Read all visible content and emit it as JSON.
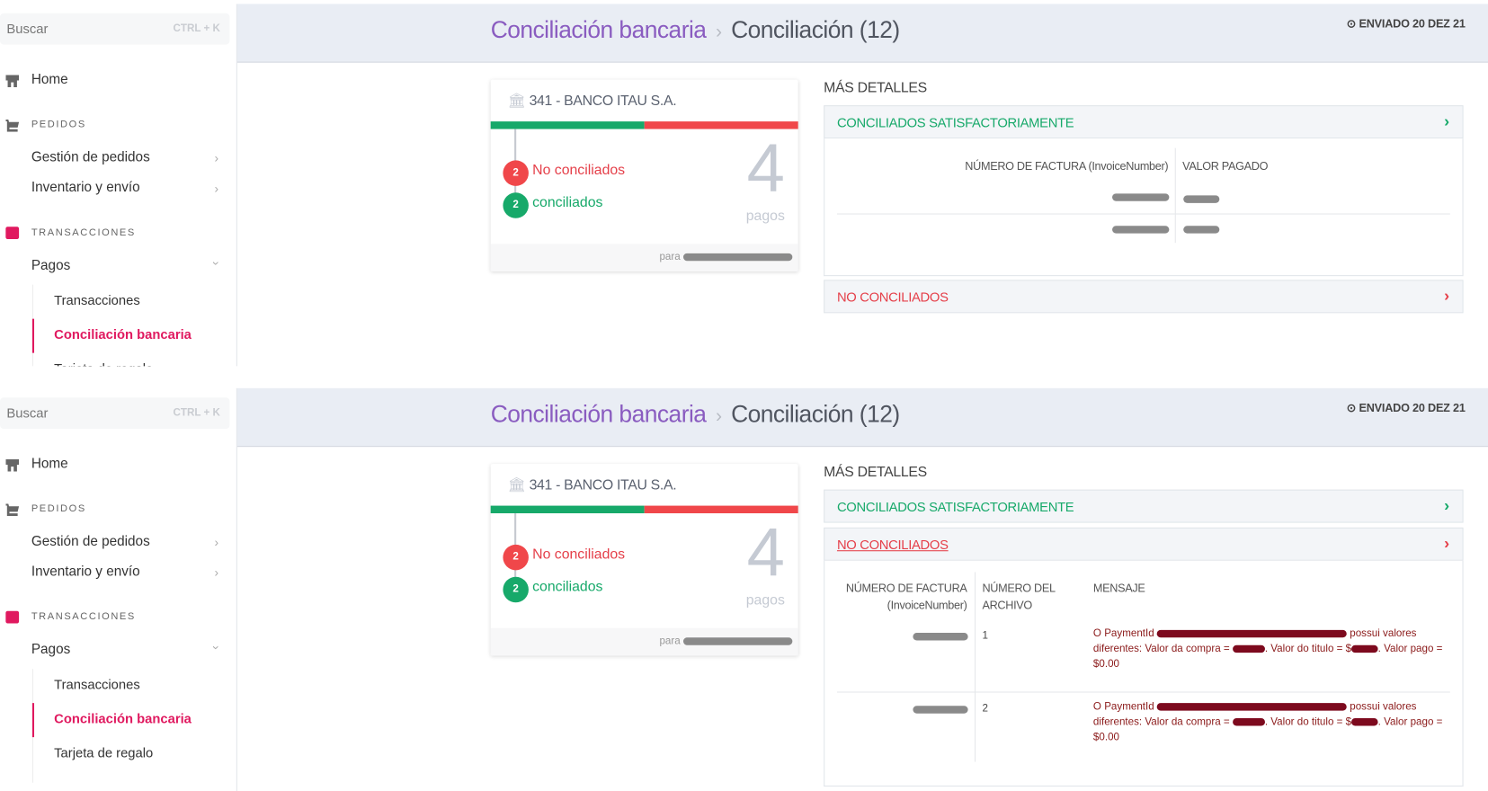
{
  "sidebar": {
    "search_placeholder": "Buscar",
    "search_shortcut": "CTRL + K",
    "home": "Home",
    "section_orders": "PEDIDOS",
    "order_management": "Gestión de pedidos",
    "inventory_shipping": "Inventario y envío",
    "section_transactions": "TRANSACCIONES",
    "payments": "Pagos",
    "sub_items": [
      "Transacciones",
      "Conciliación bancaria",
      "Tarjeta de regalo"
    ],
    "active_item": "Conciliación bancaria"
  },
  "header": {
    "breadcrumb_parent": "Conciliación bancaria",
    "breadcrumb_separator": "›",
    "breadcrumb_current": "Conciliación (12)",
    "sent_icon": "clock-icon",
    "sent_label": "ENVIADO 20 DEZ 21"
  },
  "card": {
    "bank_icon": "bank-icon",
    "bank_name": "341 - BANCO ITAU S.A.",
    "not_reconciled_count": "2",
    "not_reconciled_label": "No conciliados",
    "reconciled_count": "2",
    "reconciled_label": "conciliados",
    "total": "4",
    "total_unit": "pagos",
    "footer_prefix": "para",
    "reconciled_fraction": 0.5
  },
  "details": {
    "title": "MÁS DETALLES",
    "reconciled_section": {
      "label": "CONCILIADOS SATISFACTORIAMENTE",
      "columns": [
        "NÚMERO DE FACTURA (InvoiceNumber)",
        "VALOR PAGADO"
      ],
      "row_count_redacted": 2
    },
    "not_reconciled_section": {
      "label": "NO CONCILIADOS",
      "columns": [
        "NÚMERO DE FACTURA (InvoiceNumber)",
        "NÚMERO DEL ARCHIVO",
        "MENSAJE"
      ],
      "rows": [
        {
          "file_number": "1",
          "msg_a": "O PaymentId",
          "msg_b": "possui valores diferentes: Valor da compra =",
          "msg_c": ". Valor do titulo = $",
          "msg_d": ". Valor pago = $0.00"
        },
        {
          "file_number": "2",
          "msg_a": "O PaymentId",
          "msg_b": "possui valores diferentes: Valor da compra =",
          "msg_c": ". Valor do titulo = $",
          "msg_d": ". Valor pago = $0.00"
        }
      ]
    }
  },
  "colors": {
    "green": "#17a96a",
    "red": "#f0474a",
    "active_pink": "#e0195f",
    "breadcrumb_purple": "#8a5cc0",
    "message_red": "#8b1a1a"
  }
}
